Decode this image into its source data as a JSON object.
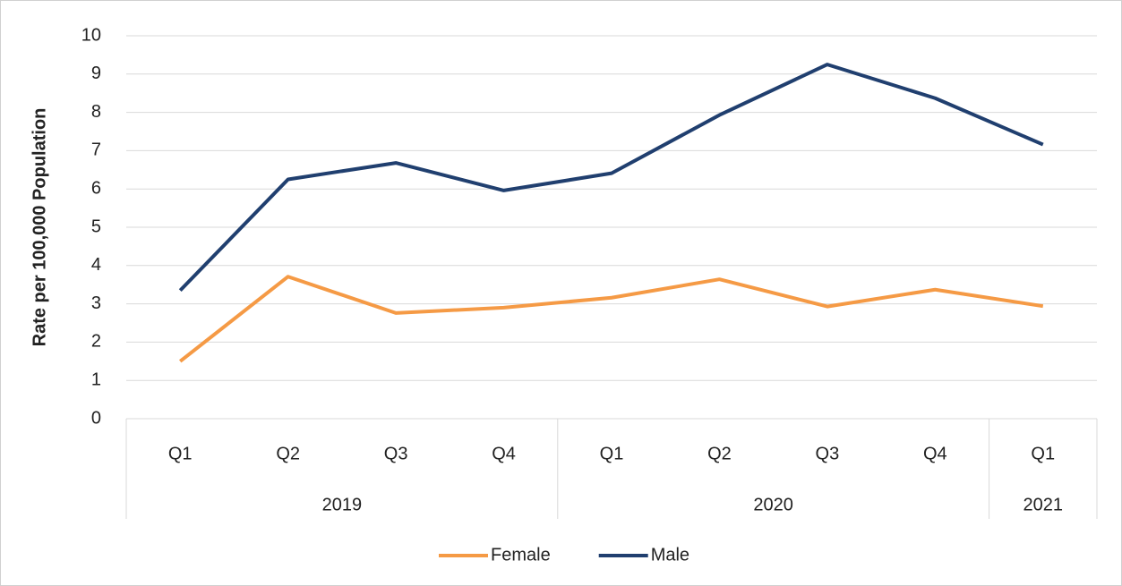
{
  "chart_data": {
    "type": "line",
    "y_label": "Rate per 100,000 Population",
    "category_groups": [
      {
        "name": "2019",
        "categories": [
          "Q1",
          "Q2",
          "Q3",
          "Q4"
        ]
      },
      {
        "name": "2020",
        "categories": [
          "Q1",
          "Q2",
          "Q3",
          "Q4"
        ]
      },
      {
        "name": "2021",
        "categories": [
          "Q1"
        ]
      }
    ],
    "series": [
      {
        "name": "Female",
        "color": "#f59a45",
        "values": [
          1.5,
          3.71,
          2.76,
          2.9,
          3.16,
          3.64,
          2.93,
          3.37,
          2.94
        ]
      },
      {
        "name": "Male",
        "color": "#203f6f",
        "values": [
          3.35,
          6.25,
          6.68,
          5.96,
          6.41,
          7.93,
          9.25,
          8.37,
          7.16
        ]
      }
    ],
    "ylim": [
      0,
      10
    ],
    "yticks": [
      0,
      1,
      2,
      3,
      4,
      5,
      6,
      7,
      8,
      9,
      10
    ],
    "grid": true,
    "legend": "bottom"
  }
}
